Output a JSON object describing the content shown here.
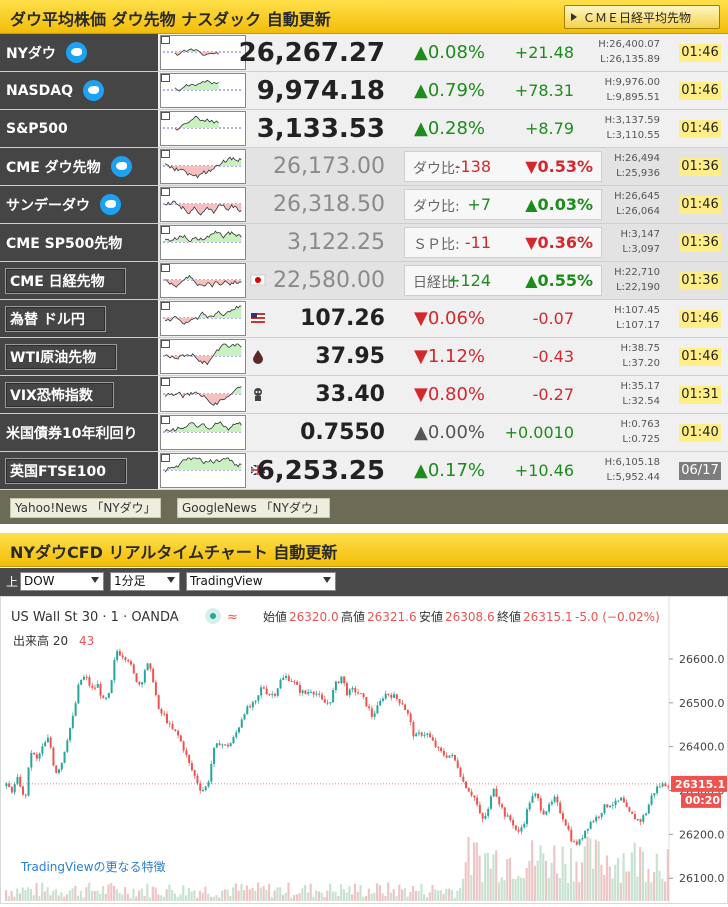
{
  "header": {
    "title": "ダウ平均株価 ダウ先物 ナスダック 自動更新",
    "cme_button": "ＣＭＥ日経平均先物"
  },
  "rows": [
    {
      "name": "NYダウ",
      "twitter": true,
      "value": "26,267.27",
      "pct": "▲0.08%",
      "change": "+21.48",
      "high": "H:26,400.07",
      "low": "L:26,135.89",
      "time": "01:46",
      "dir": "up"
    },
    {
      "name": "NASDAQ",
      "twitter": true,
      "value": "9,974.18",
      "pct": "▲0.79%",
      "change": "+78.31",
      "high": "H:9,976.00",
      "low": "L:9,895.51",
      "time": "01:46",
      "dir": "up"
    },
    {
      "name": "S&P500",
      "twitter": false,
      "value": "3,133.53",
      "pct": "▲0.28%",
      "change": "+8.79",
      "high": "H:3,137.59",
      "low": "L:3,110.55",
      "time": "01:46",
      "dir": "up"
    },
    {
      "name": "CME ダウ先物",
      "twitter": true,
      "value": "26,173.00",
      "fut_label": "ダウ比:",
      "diff": "-138",
      "fpct": "▼0.53%",
      "high": "H:26,494",
      "low": "L:25,936",
      "time": "01:36",
      "dir": "dn"
    },
    {
      "name": "サンデーダウ",
      "twitter": true,
      "value": "26,318.50",
      "fut_label": "ダウ比:",
      "diff": "+7",
      "fpct": "▲0.03%",
      "high": "H:26,645",
      "low": "L:26,064",
      "time": "01:46",
      "dir": "up"
    },
    {
      "name": "CME SP500先物",
      "twitter": false,
      "value": "3,122.25",
      "fut_label": "ＳＰ比:",
      "diff": "-11",
      "fpct": "▼0.36%",
      "high": "H:3,147",
      "low": "L:3,097",
      "time": "01:36",
      "dir": "dn"
    },
    {
      "name": "CME 日経先物",
      "boxed": true,
      "flag": "jp-flag",
      "value": "22,580.00",
      "fut_label": "日経比:",
      "diff": "+124",
      "fpct": "▲0.55%",
      "high": "H:22,710",
      "low": "L:22,190",
      "time": "01:36",
      "dir": "up"
    },
    {
      "name": "為替 ドル円",
      "boxed": true,
      "flag": "us-flag",
      "value": "107.26",
      "pct": "▼0.06%",
      "change": "-0.07",
      "high": "H:107.45",
      "low": "L:107.17",
      "time": "01:46",
      "dir": "dn"
    },
    {
      "name": "WTI原油先物",
      "boxed": true,
      "flag": "oil-drop-icon",
      "value": "37.95",
      "pct": "▼1.12%",
      "change": "-0.43",
      "high": "H:38.75",
      "low": "L:37.20",
      "time": "01:46",
      "dir": "dn"
    },
    {
      "name": "VIX恐怖指数",
      "boxed": true,
      "flag": "fear-icon",
      "value": "33.40",
      "pct": "▼0.80%",
      "change": "-0.27",
      "high": "H:35.17",
      "low": "L:32.54",
      "time": "01:31",
      "dir": "dn"
    },
    {
      "name": "米国債券10年利回り",
      "twitter": false,
      "value": "0.7550",
      "pct": "▲0.00%",
      "change": "+0.0010",
      "high": "H:0.763",
      "low": "L:0.725",
      "time": "01:40",
      "dir": "nu"
    },
    {
      "name": "英国FTSE100",
      "boxed": true,
      "flag": "uk-flag",
      "value": "6,253.25",
      "pct": "▲0.17%",
      "change": "+10.46",
      "high": "H:6,105.18",
      "low": "L:5,952.44",
      "time": "06/17",
      "dir": "up",
      "time_gray": true
    }
  ],
  "footer": {
    "yahoo": "Yahoo!News 「NYダウ」",
    "google": "GoogleNews 「NYダウ」"
  },
  "section2": {
    "title": "NYダウCFD リアルタイムチャート 自動更新"
  },
  "selectors": {
    "label": "上",
    "symbol": "DOW",
    "interval": "1分足",
    "provider": "TradingView"
  },
  "chart_data": {
    "type": "candlestick",
    "title": "US Wall St 30 · 1 · OANDA",
    "ohlc": {
      "open_label": "始値",
      "open": "26320.0",
      "high_label": "高値",
      "high": "26321.6",
      "low_label": "安値",
      "low": "26308.6",
      "close_label": "終値",
      "close": "26315.1",
      "change": "-5.0 (−0.02%)"
    },
    "volume_label": "出来高 20",
    "volume_value": "43",
    "last_price": "26315.1",
    "countdown": "00:20",
    "ylim": [
      26080,
      26650
    ],
    "yticks": [
      "26600.0",
      "26500.0",
      "26400.0",
      "26300.0",
      "26200.0",
      "26100.0"
    ],
    "promo": "TradingViewの更なる特徴",
    "series": [
      {
        "values": [
          26310,
          26300,
          26330,
          26270,
          26390,
          26370,
          26400,
          26420,
          26340,
          26360,
          26420,
          26470,
          26550,
          26560,
          26530,
          26540,
          26500,
          26520,
          26620,
          26610,
          26600,
          26560,
          26540,
          26590,
          26560,
          26480,
          26470,
          26440,
          26430,
          26400,
          26360,
          26330,
          26300,
          26310,
          26390,
          26410,
          26400,
          26410,
          26440,
          26480,
          26490,
          26500,
          26540,
          26520,
          26520,
          26550,
          26560,
          26550,
          26530,
          26520,
          26530,
          26520,
          26500,
          26500,
          26540,
          26560,
          26520,
          26530,
          26520,
          26500,
          26470,
          26490,
          26520,
          26520,
          26510,
          26500,
          26470,
          26420,
          26430,
          26430,
          26410,
          26390,
          26380,
          26380,
          26360,
          26320,
          26300,
          26280,
          26230,
          26250,
          26310,
          26270,
          26240,
          26230,
          26200,
          26230,
          26280,
          26290,
          26250,
          26260,
          26280,
          26250,
          26220,
          26180,
          26180,
          26210,
          26230,
          26240,
          26260,
          26270,
          26270,
          26280,
          26250,
          26240,
          26230,
          26250,
          26290,
          26310,
          26315
        ]
      }
    ]
  }
}
